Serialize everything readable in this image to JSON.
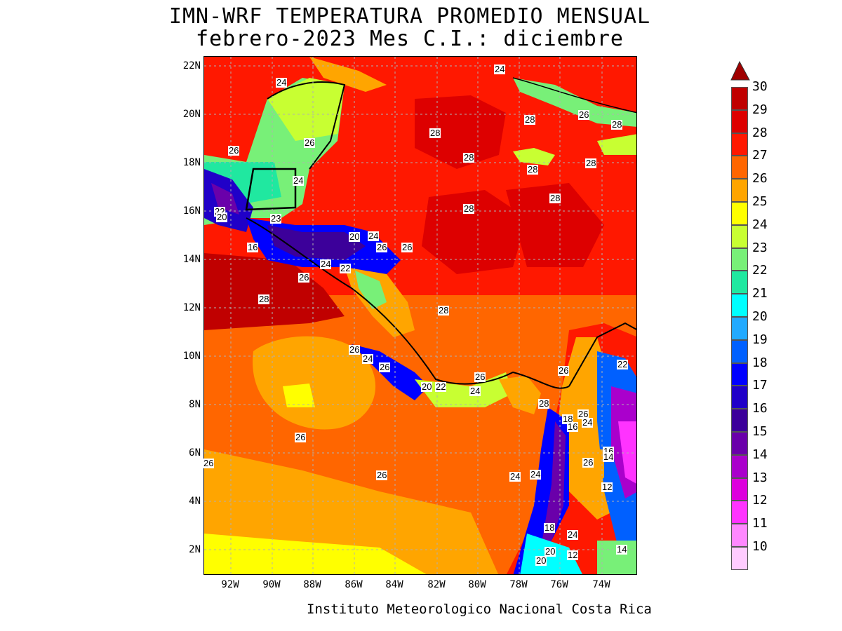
{
  "title": {
    "line1": "IMN-WRF  TEMPERATURA PROMEDIO MENSUAL",
    "line2": "febrero-2023 Mes C.I.: diciembre"
  },
  "credit": "Instituto Meteorologico Nacional Costa Rica",
  "axes": {
    "lat_labels": [
      "22N",
      "20N",
      "18N",
      "16N",
      "14N",
      "12N",
      "10N",
      "8N",
      "6N",
      "4N",
      "2N"
    ],
    "lon_labels": [
      "92W",
      "90W",
      "88W",
      "86W",
      "84W",
      "82W",
      "80W",
      "78W",
      "76W",
      "74W"
    ]
  },
  "legend": {
    "levels": [
      "30",
      "29",
      "28",
      "27",
      "26",
      "25",
      "24",
      "23",
      "22",
      "21",
      "20",
      "19",
      "18",
      "17",
      "16",
      "15",
      "14",
      "13",
      "12",
      "11",
      "10"
    ],
    "colors": [
      "#a00000",
      "#c00000",
      "#dd0000",
      "#ff1800",
      "#ff6600",
      "#ffa500",
      "#ffff00",
      "#c8ff32",
      "#78f078",
      "#20e8a0",
      "#00ffff",
      "#22aaff",
      "#0060ff",
      "#0000ff",
      "#2000c8",
      "#3c009a",
      "#6a00aa",
      "#aa00cc",
      "#dd00dd",
      "#ff33ff",
      "#ff88ff",
      "#ffccff"
    ]
  },
  "contour_labels": [
    "24",
    "24",
    "28",
    "26",
    "28",
    "28",
    "28",
    "28",
    "28",
    "28",
    "26",
    "26",
    "24",
    "22",
    "20",
    "23",
    "20",
    "24",
    "26",
    "26",
    "16",
    "24",
    "22",
    "26",
    "28",
    "28",
    "28",
    "26",
    "24",
    "26",
    "20",
    "22",
    "26",
    "26",
    "24",
    "28",
    "22",
    "18",
    "16",
    "26",
    "24",
    "26",
    "16",
    "14",
    "26",
    "26",
    "26",
    "12",
    "24",
    "18",
    "24",
    "20",
    "12",
    "20",
    "14",
    "24"
  ]
}
